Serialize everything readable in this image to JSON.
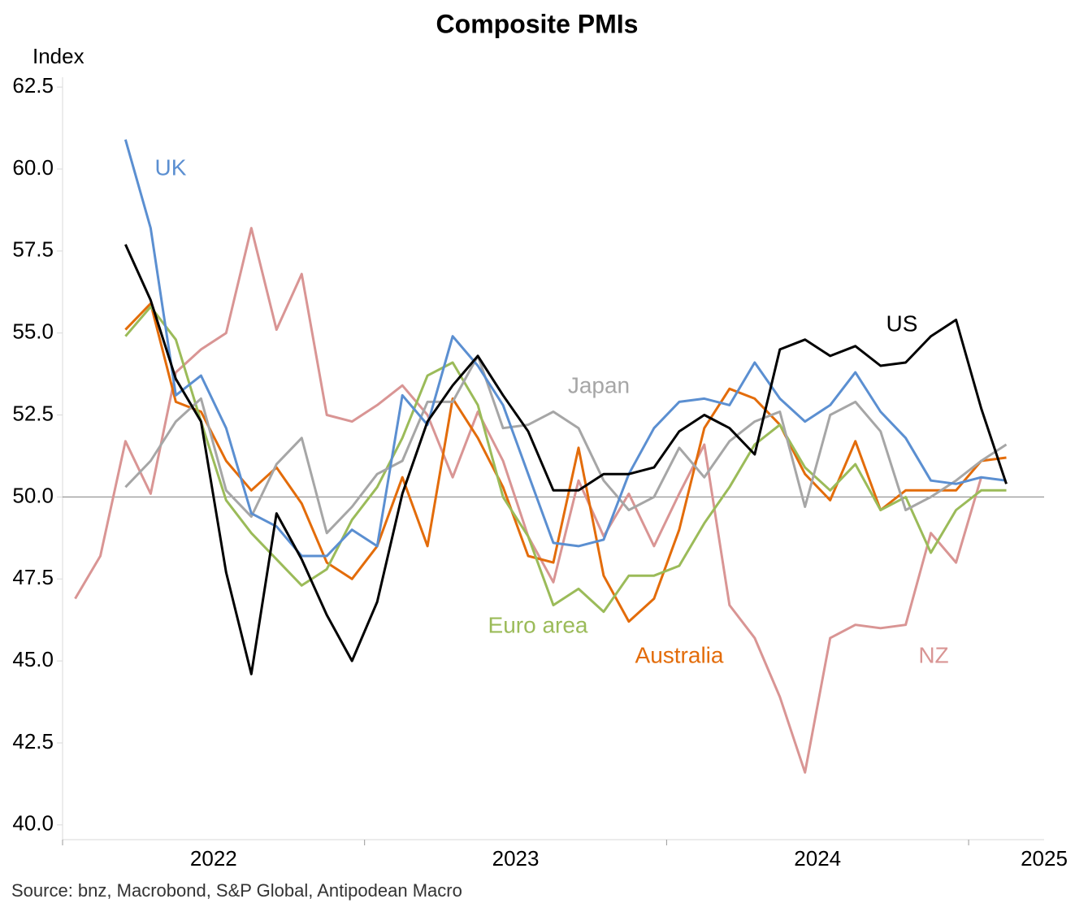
{
  "chart_data": {
    "type": "line",
    "title": "Composite PMIs",
    "y_label": "Index",
    "source": "Source: bnz, Macrobond, S&P Global, Antipodean Macro",
    "x": [
      "2022-01",
      "2022-02",
      "2022-03",
      "2022-04",
      "2022-05",
      "2022-06",
      "2022-07",
      "2022-08",
      "2022-09",
      "2022-10",
      "2022-11",
      "2022-12",
      "2023-01",
      "2023-02",
      "2023-03",
      "2023-04",
      "2023-05",
      "2023-06",
      "2023-07",
      "2023-08",
      "2023-09",
      "2023-10",
      "2023-11",
      "2023-12",
      "2024-01",
      "2024-02",
      "2024-03",
      "2024-04",
      "2024-05",
      "2024-06",
      "2024-07",
      "2024-08",
      "2024-09",
      "2024-10",
      "2024-11",
      "2024-12",
      "2025-01",
      "2025-02"
    ],
    "xlim": [
      2022,
      2025.25
    ],
    "xticks": [
      2022,
      2023,
      2024,
      2025
    ],
    "ylim": [
      39.55,
      62.8
    ],
    "yticks": [
      {
        "value": 40,
        "label": "40.0"
      },
      42.5,
      {
        "value": 45,
        "label": "45.0"
      },
      47.5,
      {
        "value": 50,
        "label": "50.0"
      },
      52.5,
      {
        "value": 55,
        "label": "55.0"
      },
      57.5,
      {
        "value": 60,
        "label": "60.0"
      },
      62.5
    ],
    "hline": 50,
    "series": [
      {
        "name": "US",
        "color": "#000000",
        "values": [
          null,
          null,
          57.7,
          56.0,
          53.6,
          52.3,
          47.7,
          44.6,
          49.5,
          48.1,
          46.4,
          45.0,
          46.8,
          50.1,
          52.3,
          53.4,
          54.3,
          53.1,
          52.0,
          50.2,
          50.2,
          50.7,
          50.7,
          50.9,
          52.0,
          52.5,
          52.1,
          51.3,
          54.5,
          54.8,
          54.3,
          54.6,
          54.0,
          54.1,
          54.9,
          55.4,
          52.7,
          50.4
        ]
      },
      {
        "name": "UK",
        "color": "#5b8fd1",
        "values": [
          null,
          null,
          60.9,
          58.2,
          53.1,
          53.7,
          52.1,
          49.5,
          49.1,
          48.2,
          48.2,
          49.0,
          48.5,
          53.1,
          52.2,
          54.9,
          54.0,
          52.8,
          50.7,
          48.6,
          48.5,
          48.7,
          50.7,
          52.1,
          52.9,
          53.0,
          52.8,
          54.1,
          53.0,
          52.3,
          52.8,
          53.8,
          52.6,
          51.8,
          50.5,
          50.4,
          50.6,
          50.5
        ]
      },
      {
        "name": "Japan",
        "color": "#a6a6a6",
        "values": [
          null,
          null,
          50.3,
          51.1,
          52.3,
          53.0,
          50.2,
          49.4,
          51.0,
          51.8,
          48.9,
          49.7,
          50.7,
          51.1,
          52.9,
          52.9,
          54.3,
          52.1,
          52.2,
          52.6,
          52.1,
          50.5,
          49.6,
          50.0,
          51.5,
          50.6,
          51.7,
          52.3,
          52.6,
          49.7,
          52.5,
          52.9,
          52.0,
          49.6,
          50.0,
          50.5,
          51.1,
          51.6
        ]
      },
      {
        "name": "Euro area",
        "color": "#9bbb59",
        "values": [
          null,
          null,
          54.9,
          55.8,
          54.8,
          52.3,
          49.9,
          48.9,
          48.1,
          47.3,
          47.8,
          49.3,
          50.3,
          51.8,
          53.7,
          54.1,
          52.8,
          50.0,
          48.8,
          46.7,
          47.2,
          46.5,
          47.6,
          47.6,
          47.9,
          49.2,
          50.3,
          51.6,
          52.2,
          50.9,
          50.2,
          51.0,
          49.6,
          50.0,
          48.3,
          49.6,
          50.2,
          50.2
        ]
      },
      {
        "name": "Australia",
        "color": "#e36c0a",
        "values": [
          null,
          null,
          55.1,
          55.9,
          52.9,
          52.6,
          51.1,
          50.2,
          50.9,
          49.8,
          48.0,
          47.5,
          48.5,
          50.6,
          48.5,
          53.0,
          51.8,
          50.3,
          48.2,
          48.0,
          51.5,
          47.6,
          46.2,
          46.9,
          49.0,
          52.1,
          53.3,
          53.0,
          52.2,
          50.7,
          49.9,
          51.7,
          49.6,
          50.2,
          50.2,
          50.2,
          51.1,
          51.2
        ]
      },
      {
        "name": "NZ",
        "color": "#d99594",
        "values": [
          46.9,
          48.2,
          51.7,
          50.1,
          53.8,
          54.5,
          55.0,
          58.2,
          55.1,
          56.8,
          52.5,
          52.3,
          52.8,
          53.4,
          52.5,
          50.6,
          52.6,
          51.1,
          48.8,
          47.4,
          50.5,
          48.8,
          50.1,
          48.5,
          50.1,
          51.6,
          46.7,
          45.7,
          43.9,
          41.6,
          45.7,
          46.1,
          46.0,
          46.1,
          48.9,
          48.0,
          50.6,
          null
        ]
      }
    ]
  }
}
